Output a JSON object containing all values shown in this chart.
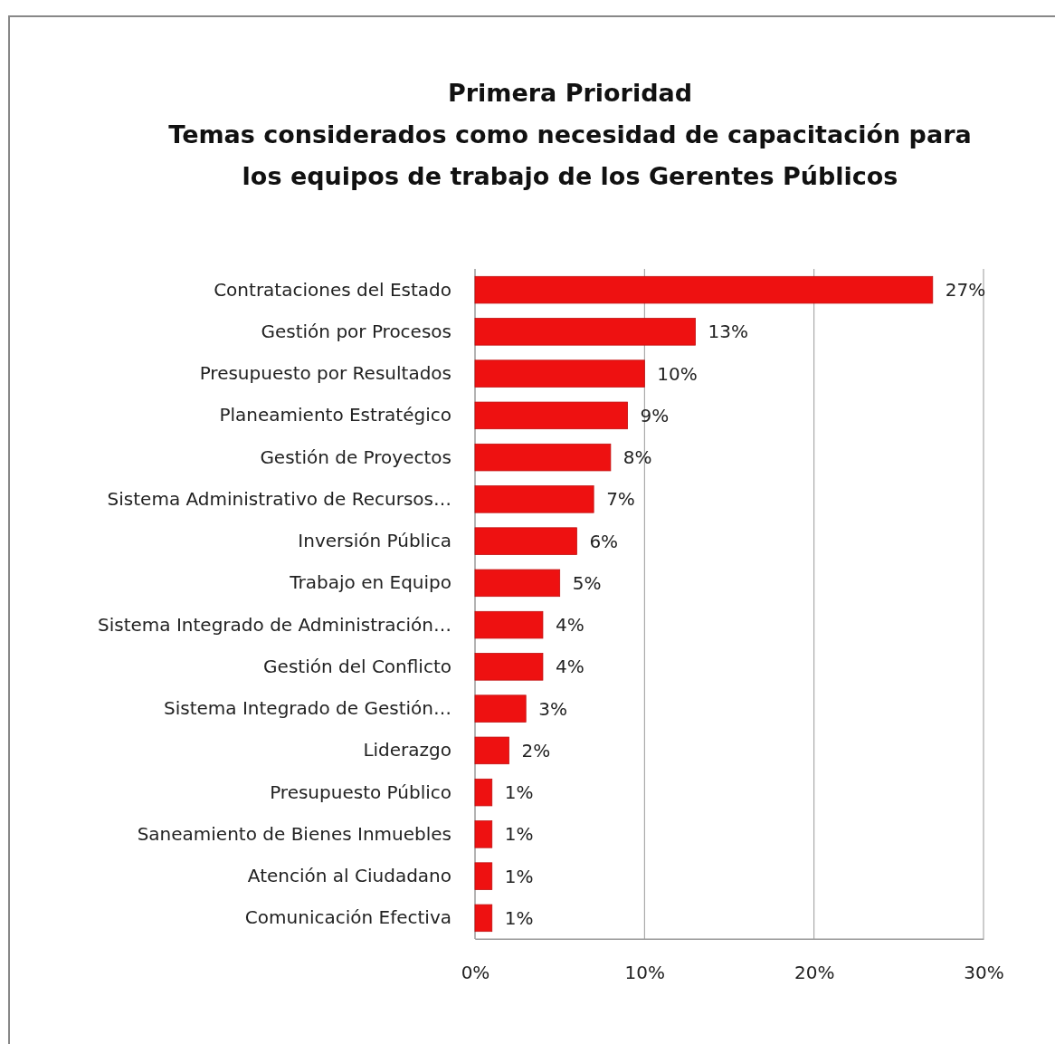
{
  "chart_data": {
    "type": "bar",
    "orientation": "horizontal",
    "title": "Primera Prioridad\nTemas considerados como necesidad de capacitación para\nlos equipos de trabajo de los Gerentes Públicos",
    "categories": [
      "Contrataciones del Estado",
      "Gestión por Procesos",
      "Presupuesto por Resultados",
      "Planeamiento Estratégico",
      "Gestión de Proyectos",
      "Sistema Administrativo de Recursos…",
      "Inversión Pública",
      "Trabajo en Equipo",
      "Sistema Integrado de Administración…",
      "Gestión del Conflicto",
      "Sistema Integrado de Gestión…",
      "Liderazgo",
      "Presupuesto Público",
      "Saneamiento de Bienes Inmuebles",
      "Atención al Ciudadano",
      "Comunicación Efectiva"
    ],
    "values": [
      27,
      13,
      10,
      9,
      8,
      7,
      6,
      5,
      4,
      4,
      3,
      2,
      1,
      1,
      1,
      1
    ],
    "value_labels": [
      "27%",
      "13%",
      "10%",
      "9%",
      "8%",
      "7%",
      "6%",
      "5%",
      "4%",
      "4%",
      "3%",
      "2%",
      "1%",
      "1%",
      "1%",
      "1%"
    ],
    "color": "#ee1111",
    "xlim": [
      0,
      30
    ],
    "xticks": [
      {
        "value": 0,
        "label": "0%"
      },
      {
        "value": 10,
        "label": "10%"
      },
      {
        "value": 20,
        "label": "20%"
      },
      {
        "value": 30,
        "label": "30%"
      }
    ],
    "grid": "x"
  }
}
